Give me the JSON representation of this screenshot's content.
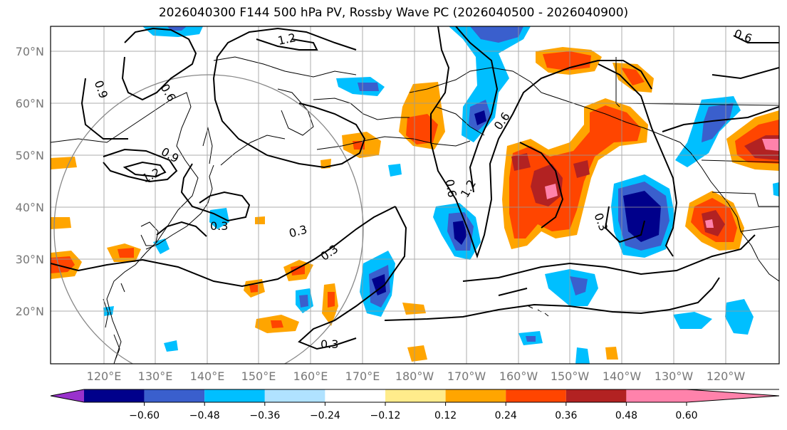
{
  "title": "2026040300 F144 500 hPa PV, Rossby Wave PC (2026040500 - 2026040900)",
  "lat_ticks": [
    "70°N",
    "60°N",
    "50°N",
    "40°N",
    "30°N",
    "20°N"
  ],
  "lon_ticks": [
    "120°E",
    "130°E",
    "140°E",
    "150°E",
    "160°E",
    "170°E",
    "180°W",
    "170°W",
    "160°W",
    "150°W",
    "140°W",
    "130°W",
    "120°W"
  ],
  "contour_labels": [
    "1.2",
    "0.6",
    "0.9",
    "0.6",
    "0.9",
    "1.2",
    "0.3",
    "0.3",
    "0.3",
    "0.3",
    "0.6",
    "1.2",
    "0.3",
    "0.6"
  ],
  "colorbar": {
    "labels": [
      "−0.60",
      "−0.48",
      "−0.36",
      "−0.24",
      "−0.12",
      "0.12",
      "0.24",
      "0.36",
      "0.48",
      "0.60"
    ],
    "colors": [
      "#9932cc",
      "#00008b",
      "#3a5fcd",
      "#00bfff",
      "#b0e2ff",
      "#ffffff",
      "#ffec8b",
      "#ffa500",
      "#ff4500",
      "#b22222",
      "#ff82ab"
    ]
  },
  "palette": {
    "neg_strong": "#00008b",
    "neg_mid": "#3a5fcd",
    "neg": "#00bfff",
    "neg_weak": "#b0e2ff",
    "pos_weak": "#ffec8b",
    "pos": "#ffa500",
    "pos_mid": "#ff4500",
    "pos_strong": "#b22222",
    "pos_max": "#ff82ab"
  }
}
